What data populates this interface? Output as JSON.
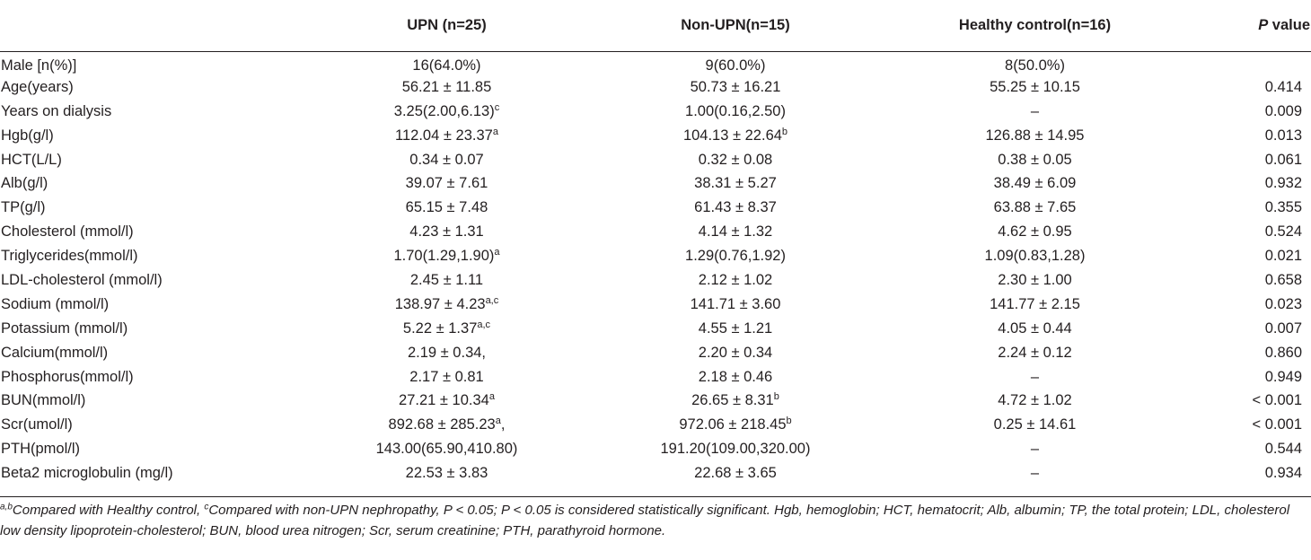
{
  "headers": {
    "label": "",
    "upn": "UPN (n=25)",
    "nonupn": "Non-UPN(n=15)",
    "control": "Healthy control(n=16)",
    "p_italic": "P",
    "p_rest": " value"
  },
  "rows": [
    {
      "label": "Male [n(%)]",
      "upn": "16(64.0%)",
      "upn_sup": "",
      "nonupn": "9(60.0%)",
      "nonupn_sup": "",
      "control": "8(50.0%)",
      "p": ""
    },
    {
      "label": "Age(years)",
      "upn": "56.21 ± 11.85",
      "upn_sup": "",
      "nonupn": "50.73 ± 16.21",
      "nonupn_sup": "",
      "control": "55.25 ± 10.15",
      "p": "0.414"
    },
    {
      "label": "Years on dialysis",
      "upn": "3.25(2.00,6.13)",
      "upn_sup": "c",
      "nonupn": "1.00(0.16,2.50)",
      "nonupn_sup": "",
      "control": "–",
      "p": "0.009"
    },
    {
      "label": "Hgb(g/l)",
      "upn": "112.04 ± 23.37",
      "upn_sup": "a",
      "nonupn": "104.13 ± 22.64",
      "nonupn_sup": "b",
      "control": "126.88 ± 14.95",
      "p": "0.013"
    },
    {
      "label": "HCT(L/L)",
      "upn": "0.34 ± 0.07",
      "upn_sup": "",
      "nonupn": "0.32 ± 0.08",
      "nonupn_sup": "",
      "control": "0.38 ± 0.05",
      "p": "0.061"
    },
    {
      "label": "Alb(g/l)",
      "upn": "39.07 ± 7.61",
      "upn_sup": "",
      "nonupn": "38.31 ± 5.27",
      "nonupn_sup": "",
      "control": "38.49 ± 6.09",
      "p": "0.932"
    },
    {
      "label": "TP(g/l)",
      "upn": "65.15 ± 7.48",
      "upn_sup": "",
      "nonupn": "61.43 ± 8.37",
      "nonupn_sup": "",
      "control": "63.88 ± 7.65",
      "p": "0.355"
    },
    {
      "label": "Cholesterol (mmol/l)",
      "upn": "4.23 ± 1.31",
      "upn_sup": "",
      "nonupn": "4.14 ± 1.32",
      "nonupn_sup": "",
      "control": "4.62 ± 0.95",
      "p": "0.524"
    },
    {
      "label": "Triglycerides(mmol/l)",
      "upn": "1.70(1.29,1.90)",
      "upn_sup": "a",
      "nonupn": "1.29(0.76,1.92)",
      "nonupn_sup": "",
      "control": "1.09(0.83,1.28)",
      "p": "0.021"
    },
    {
      "label": "LDL-cholesterol (mmol/l)",
      "upn": "2.45 ± 1.11",
      "upn_sup": "",
      "nonupn": "2.12 ± 1.02",
      "nonupn_sup": "",
      "control": "2.30 ± 1.00",
      "p": "0.658"
    },
    {
      "label": "Sodium (mmol/l)",
      "upn": "138.97 ± 4.23",
      "upn_sup": "a,c",
      "nonupn": "141.71 ± 3.60",
      "nonupn_sup": "",
      "control": "141.77 ± 2.15",
      "p": "0.023"
    },
    {
      "label": "Potassium (mmol/l)",
      "upn": "5.22 ± 1.37",
      "upn_sup": "a,c",
      "nonupn": "4.55 ± 1.21",
      "nonupn_sup": "",
      "control": "4.05 ± 0.44",
      "p": "0.007"
    },
    {
      "label": "Calcium(mmol/l)",
      "upn": "2.19 ± 0.34,",
      "upn_sup": "",
      "nonupn": "2.20 ± 0.34",
      "nonupn_sup": "",
      "control": "2.24 ± 0.12",
      "p": "0.860"
    },
    {
      "label": "Phosphorus(mmol/l)",
      "upn": "2.17 ± 0.81",
      "upn_sup": "",
      "nonupn": "2.18 ± 0.46",
      "nonupn_sup": "",
      "control": "–",
      "p": "0.949"
    },
    {
      "label": "BUN(mmol/l)",
      "upn": "27.21 ± 10.34",
      "upn_sup": "a",
      "nonupn": "26.65 ± 8.31",
      "nonupn_sup": "b",
      "control": "4.72 ± 1.02",
      "p": "< 0.001"
    },
    {
      "label": "Scr(umol/l)",
      "upn": "892.68 ± 285.23",
      "upn_sup": "a",
      "upn_after": ",",
      "nonupn": "972.06 ± 218.45",
      "nonupn_sup": "b",
      "control": "0.25 ± 14.61",
      "p": "< 0.001"
    },
    {
      "label": "PTH(pmol/l)",
      "upn": "143.00(65.90,410.80)",
      "upn_sup": "",
      "nonupn": "191.20(109.00,320.00)",
      "nonupn_sup": "",
      "control": "–",
      "p": "0.544"
    },
    {
      "label": "Beta2 microglobulin (mg/l)",
      "upn": "22.53 ± 3.83",
      "upn_sup": "",
      "nonupn": "22.68 ± 3.65",
      "nonupn_sup": "",
      "control": "–",
      "p": "0.934"
    }
  ],
  "footnote": {
    "sup1": "a,b",
    "part1": "Compared with Healthy control, ",
    "sup2": "c",
    "part2": "Compared with non-UPN nephropathy, P < 0.05; P < 0.05 is considered statistically significant. Hgb, hemoglobin; HCT, hematocrit; Alb, albumin; TP, the total protein; LDL, cholesterol low density lipoprotein-cholesterol; BUN, blood urea nitrogen; Scr, serum creatinine; PTH, parathyroid hormone."
  }
}
